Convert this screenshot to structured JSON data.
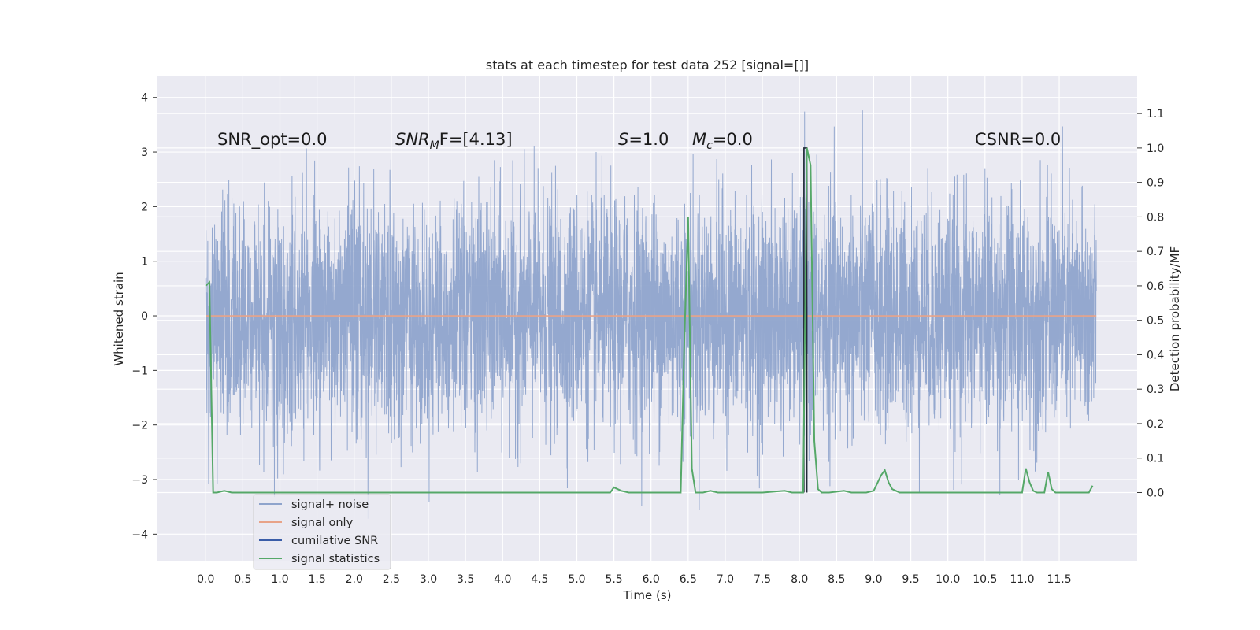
{
  "chart_data": {
    "type": "line",
    "title": "stats at each timestep for test data 252 [signal=[]]",
    "xlabel": "Time (s)",
    "ylabel": "Whitened strain",
    "y2label": "Detection probability/MF",
    "xlim": [
      -0.65,
      12.55
    ],
    "ylim": [
      -4.5,
      4.4
    ],
    "y2lim": [
      -0.2,
      1.21
    ],
    "xticks": [
      "0.0",
      "0.5",
      "1.0",
      "1.5",
      "2.0",
      "2.5",
      "3.0",
      "3.5",
      "4.0",
      "4.5",
      "5.0",
      "5.5",
      "6.0",
      "6.5",
      "7.0",
      "7.5",
      "8.0",
      "8.5",
      "9.0",
      "9.5",
      "10.0",
      "10.5",
      "11.0",
      "11.5"
    ],
    "yticks": [
      "4",
      "3",
      "2",
      "1",
      "0",
      "−1",
      "−2",
      "−3",
      "−4"
    ],
    "y2ticks": [
      "1.1",
      "1.0",
      "0.9",
      "0.8",
      "0.7",
      "0.6",
      "0.5",
      "0.4",
      "0.3",
      "0.2",
      "0.1",
      "0.0"
    ],
    "grid": true,
    "legend_position": "lower-left",
    "legend": [
      {
        "label": "signal+ noise",
        "color": "#8fa4cc"
      },
      {
        "label": "signal only",
        "color": "#e8a388"
      },
      {
        "label": "cumilative SNR",
        "color": "#3a5da8"
      },
      {
        "label": "signal statistics",
        "color": "#55a868"
      }
    ],
    "annotations": [
      {
        "id": "snr-opt",
        "text": "SNR_opt=0.0"
      },
      {
        "id": "snr-mf",
        "text": "SNR_MF=[4.13]",
        "math_base": "SNR",
        "math_sub": "M",
        "math_rest": "F=[4.13]"
      },
      {
        "id": "s-stat",
        "text": "S=1.0",
        "math_base": "S",
        "math_rest": "=1.0"
      },
      {
        "id": "mc",
        "text": "M_c=0.0",
        "math_base": "M",
        "math_sub": "c",
        "math_rest": "=0.0"
      },
      {
        "id": "csnr",
        "text": "CSNR=0.0"
      }
    ],
    "series": [
      {
        "name": "signal+ noise",
        "color": "#8fa4cc",
        "x_range": [
          0.0,
          12.0
        ],
        "description_values": "dense noise, mostly within ±2, peaks near ±4"
      },
      {
        "name": "signal only",
        "color": "#e8a388",
        "x": [
          0.0,
          12.0
        ],
        "y": [
          0.0,
          0.0
        ]
      },
      {
        "name": "cumilative SNR",
        "color": "#3a5da8",
        "x": [
          8.06,
          8.06,
          8.1,
          8.1
        ],
        "y": [
          0.0,
          1.0,
          1.0,
          0.0
        ]
      },
      {
        "name": "signal statistics",
        "color": "#55a868",
        "x": [
          0.0,
          0.05,
          0.1,
          0.15,
          0.25,
          0.35,
          1.0,
          2.0,
          3.0,
          4.0,
          5.0,
          5.45,
          5.5,
          5.6,
          5.7,
          6.4,
          6.45,
          6.5,
          6.55,
          6.6,
          6.7,
          6.8,
          6.9,
          7.0,
          7.5,
          7.8,
          7.9,
          8.0,
          8.05,
          8.1,
          8.15,
          8.2,
          8.25,
          8.3,
          8.4,
          8.6,
          8.7,
          8.8,
          8.9,
          9.0,
          9.1,
          9.15,
          9.2,
          9.25,
          9.3,
          9.35,
          9.5,
          10.0,
          11.0,
          11.05,
          11.1,
          11.15,
          11.2,
          11.3,
          11.35,
          11.4,
          11.45,
          11.5,
          11.6,
          11.9,
          11.95
        ],
        "y": [
          0.6,
          0.61,
          0.0,
          0.0,
          0.005,
          0.0,
          0.0,
          0.0,
          0.0,
          0.0,
          0.0,
          0.0,
          0.015,
          0.005,
          0.0,
          0.0,
          0.45,
          0.8,
          0.07,
          0.0,
          0.0,
          0.005,
          0.0,
          0.0,
          0.0,
          0.005,
          0.0,
          0.0,
          0.0,
          1.0,
          0.95,
          0.15,
          0.01,
          0.0,
          0.0,
          0.005,
          0.0,
          0.0,
          0.0,
          0.005,
          0.05,
          0.065,
          0.03,
          0.01,
          0.005,
          0.0,
          0.0,
          0.0,
          0.0,
          0.07,
          0.03,
          0.005,
          0.0,
          0.0,
          0.06,
          0.01,
          0.0,
          0.0,
          0.0,
          0.0,
          0.02
        ]
      }
    ]
  },
  "colors": {
    "plot_background": "#eaeaf2",
    "grid": "#ffffff",
    "noise": "#8fa4cc",
    "signal_only": "#e8a388",
    "cumulative_snr": "#3a5da8",
    "signal_statistics": "#55a868"
  }
}
